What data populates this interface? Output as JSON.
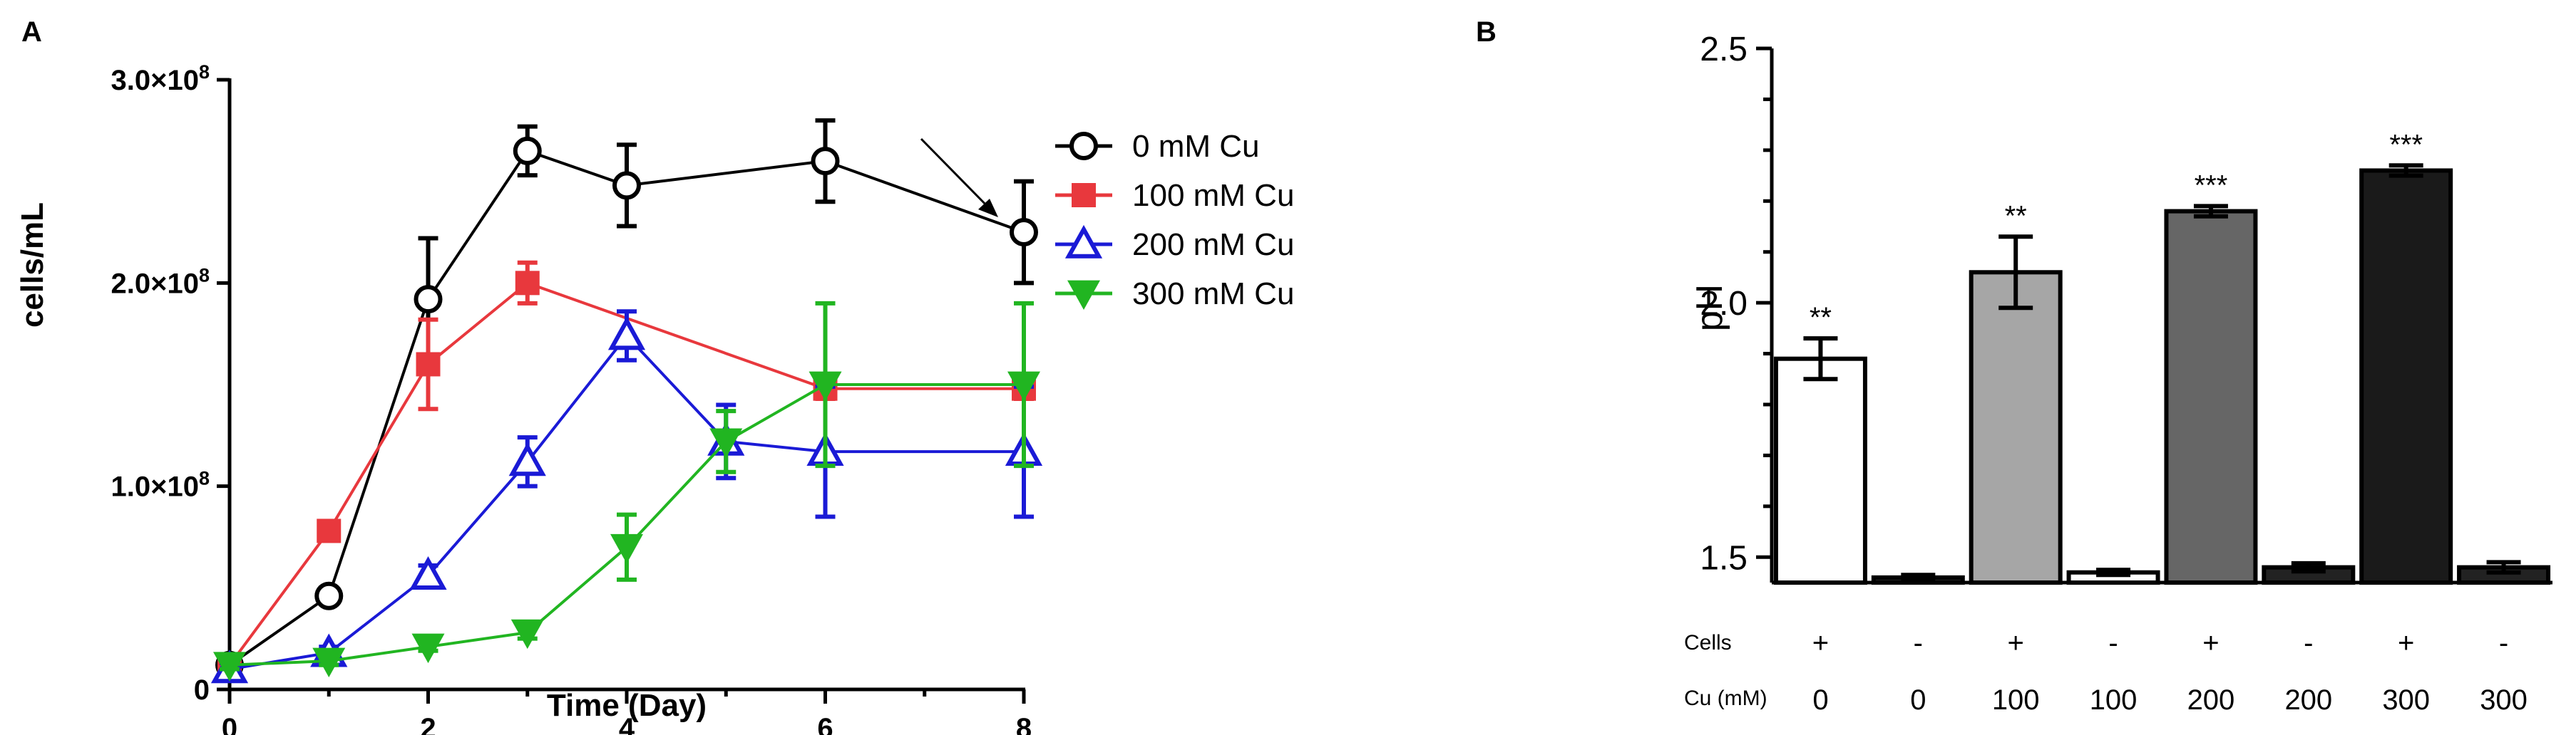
{
  "chart_data": [
    {
      "panel_label": "A",
      "type": "line",
      "title": "",
      "xlabel": "Time (Day)",
      "ylabel": "cells/mL",
      "xlim": [
        0,
        8
      ],
      "ylim": [
        0,
        300000000
      ],
      "x_ticks": [
        "0",
        "2",
        "4",
        "6",
        "8"
      ],
      "y_ticks": [
        {
          "value": 0,
          "mantissa": "0",
          "exp": ""
        },
        {
          "value": 100000000,
          "mantissa": "1.0×10",
          "exp": "8"
        },
        {
          "value": 200000000,
          "mantissa": "2.0×10",
          "exp": "8"
        },
        {
          "value": 300000000,
          "mantissa": "3.0×10",
          "exp": "8"
        }
      ],
      "legend_position": "right",
      "annotation": "arrow pointing to day 8 of 0 mM Cu",
      "series": [
        {
          "name": "0 mM Cu",
          "color": "#000000",
          "marker": "open-circle",
          "x": [
            0,
            1,
            2,
            3,
            4,
            6,
            8
          ],
          "values": [
            12000000,
            46000000,
            192000000,
            265000000,
            248000000,
            260000000,
            225000000
          ],
          "errors": [
            3000000,
            4000000,
            30000000,
            12000000,
            20000000,
            20000000,
            25000000
          ]
        },
        {
          "name": "100 mM Cu",
          "color": "#e8383d",
          "marker": "filled-square",
          "x": [
            0,
            1,
            2,
            3,
            6,
            8
          ],
          "values": [
            12000000,
            78000000,
            160000000,
            200000000,
            148000000,
            148000000
          ],
          "errors": [
            3000000,
            3000000,
            22000000,
            10000000,
            5000000,
            5000000
          ]
        },
        {
          "name": "200 mM Cu",
          "color": "#1a1ad6",
          "marker": "open-triangle-up",
          "x": [
            0,
            1,
            2,
            3,
            4,
            5,
            6,
            8
          ],
          "values": [
            10000000,
            18000000,
            56000000,
            112000000,
            174000000,
            122000000,
            117000000,
            117000000
          ],
          "errors": [
            3000000,
            3000000,
            5000000,
            12000000,
            12000000,
            18000000,
            32000000,
            32000000
          ]
        },
        {
          "name": "300 mM Cu",
          "color": "#21b521",
          "marker": "filled-triangle-down",
          "x": [
            0,
            1,
            2,
            3,
            4,
            5,
            6,
            8
          ],
          "values": [
            12000000,
            14000000,
            21000000,
            28000000,
            70000000,
            122000000,
            150000000,
            150000000
          ],
          "errors": [
            2000000,
            2000000,
            2000000,
            3000000,
            16000000,
            15000000,
            40000000,
            40000000
          ]
        }
      ]
    },
    {
      "panel_label": "B",
      "type": "bar",
      "title": "",
      "xlabel": "",
      "ylabel": "pH",
      "ylim": [
        1.45,
        2.5
      ],
      "y_ticks": [
        "1.5",
        "2.0",
        "2.5"
      ],
      "row_labels": {
        "cells": "Cells",
        "cu": "Cu (mM)"
      },
      "categories": [
        {
          "cells": "+",
          "cu": "0"
        },
        {
          "cells": "-",
          "cu": "0"
        },
        {
          "cells": "+",
          "cu": "100"
        },
        {
          "cells": "-",
          "cu": "100"
        },
        {
          "cells": "+",
          "cu": "200"
        },
        {
          "cells": "-",
          "cu": "200"
        },
        {
          "cells": "+",
          "cu": "300"
        },
        {
          "cells": "-",
          "cu": "300"
        }
      ],
      "values": [
        1.89,
        1.46,
        2.06,
        1.47,
        2.18,
        1.48,
        2.26,
        1.48
      ],
      "errors": [
        0.04,
        0.005,
        0.07,
        0.005,
        0.01,
        0.008,
        0.01,
        0.01
      ],
      "fills": [
        "#ffffff",
        "#222222",
        "#a6a6a6",
        "#ffffff",
        "#666666",
        "#222222",
        "#1a1a1a",
        "#222222"
      ],
      "significance": [
        "**",
        "",
        "**",
        "",
        "***",
        "",
        "***",
        ""
      ]
    }
  ]
}
